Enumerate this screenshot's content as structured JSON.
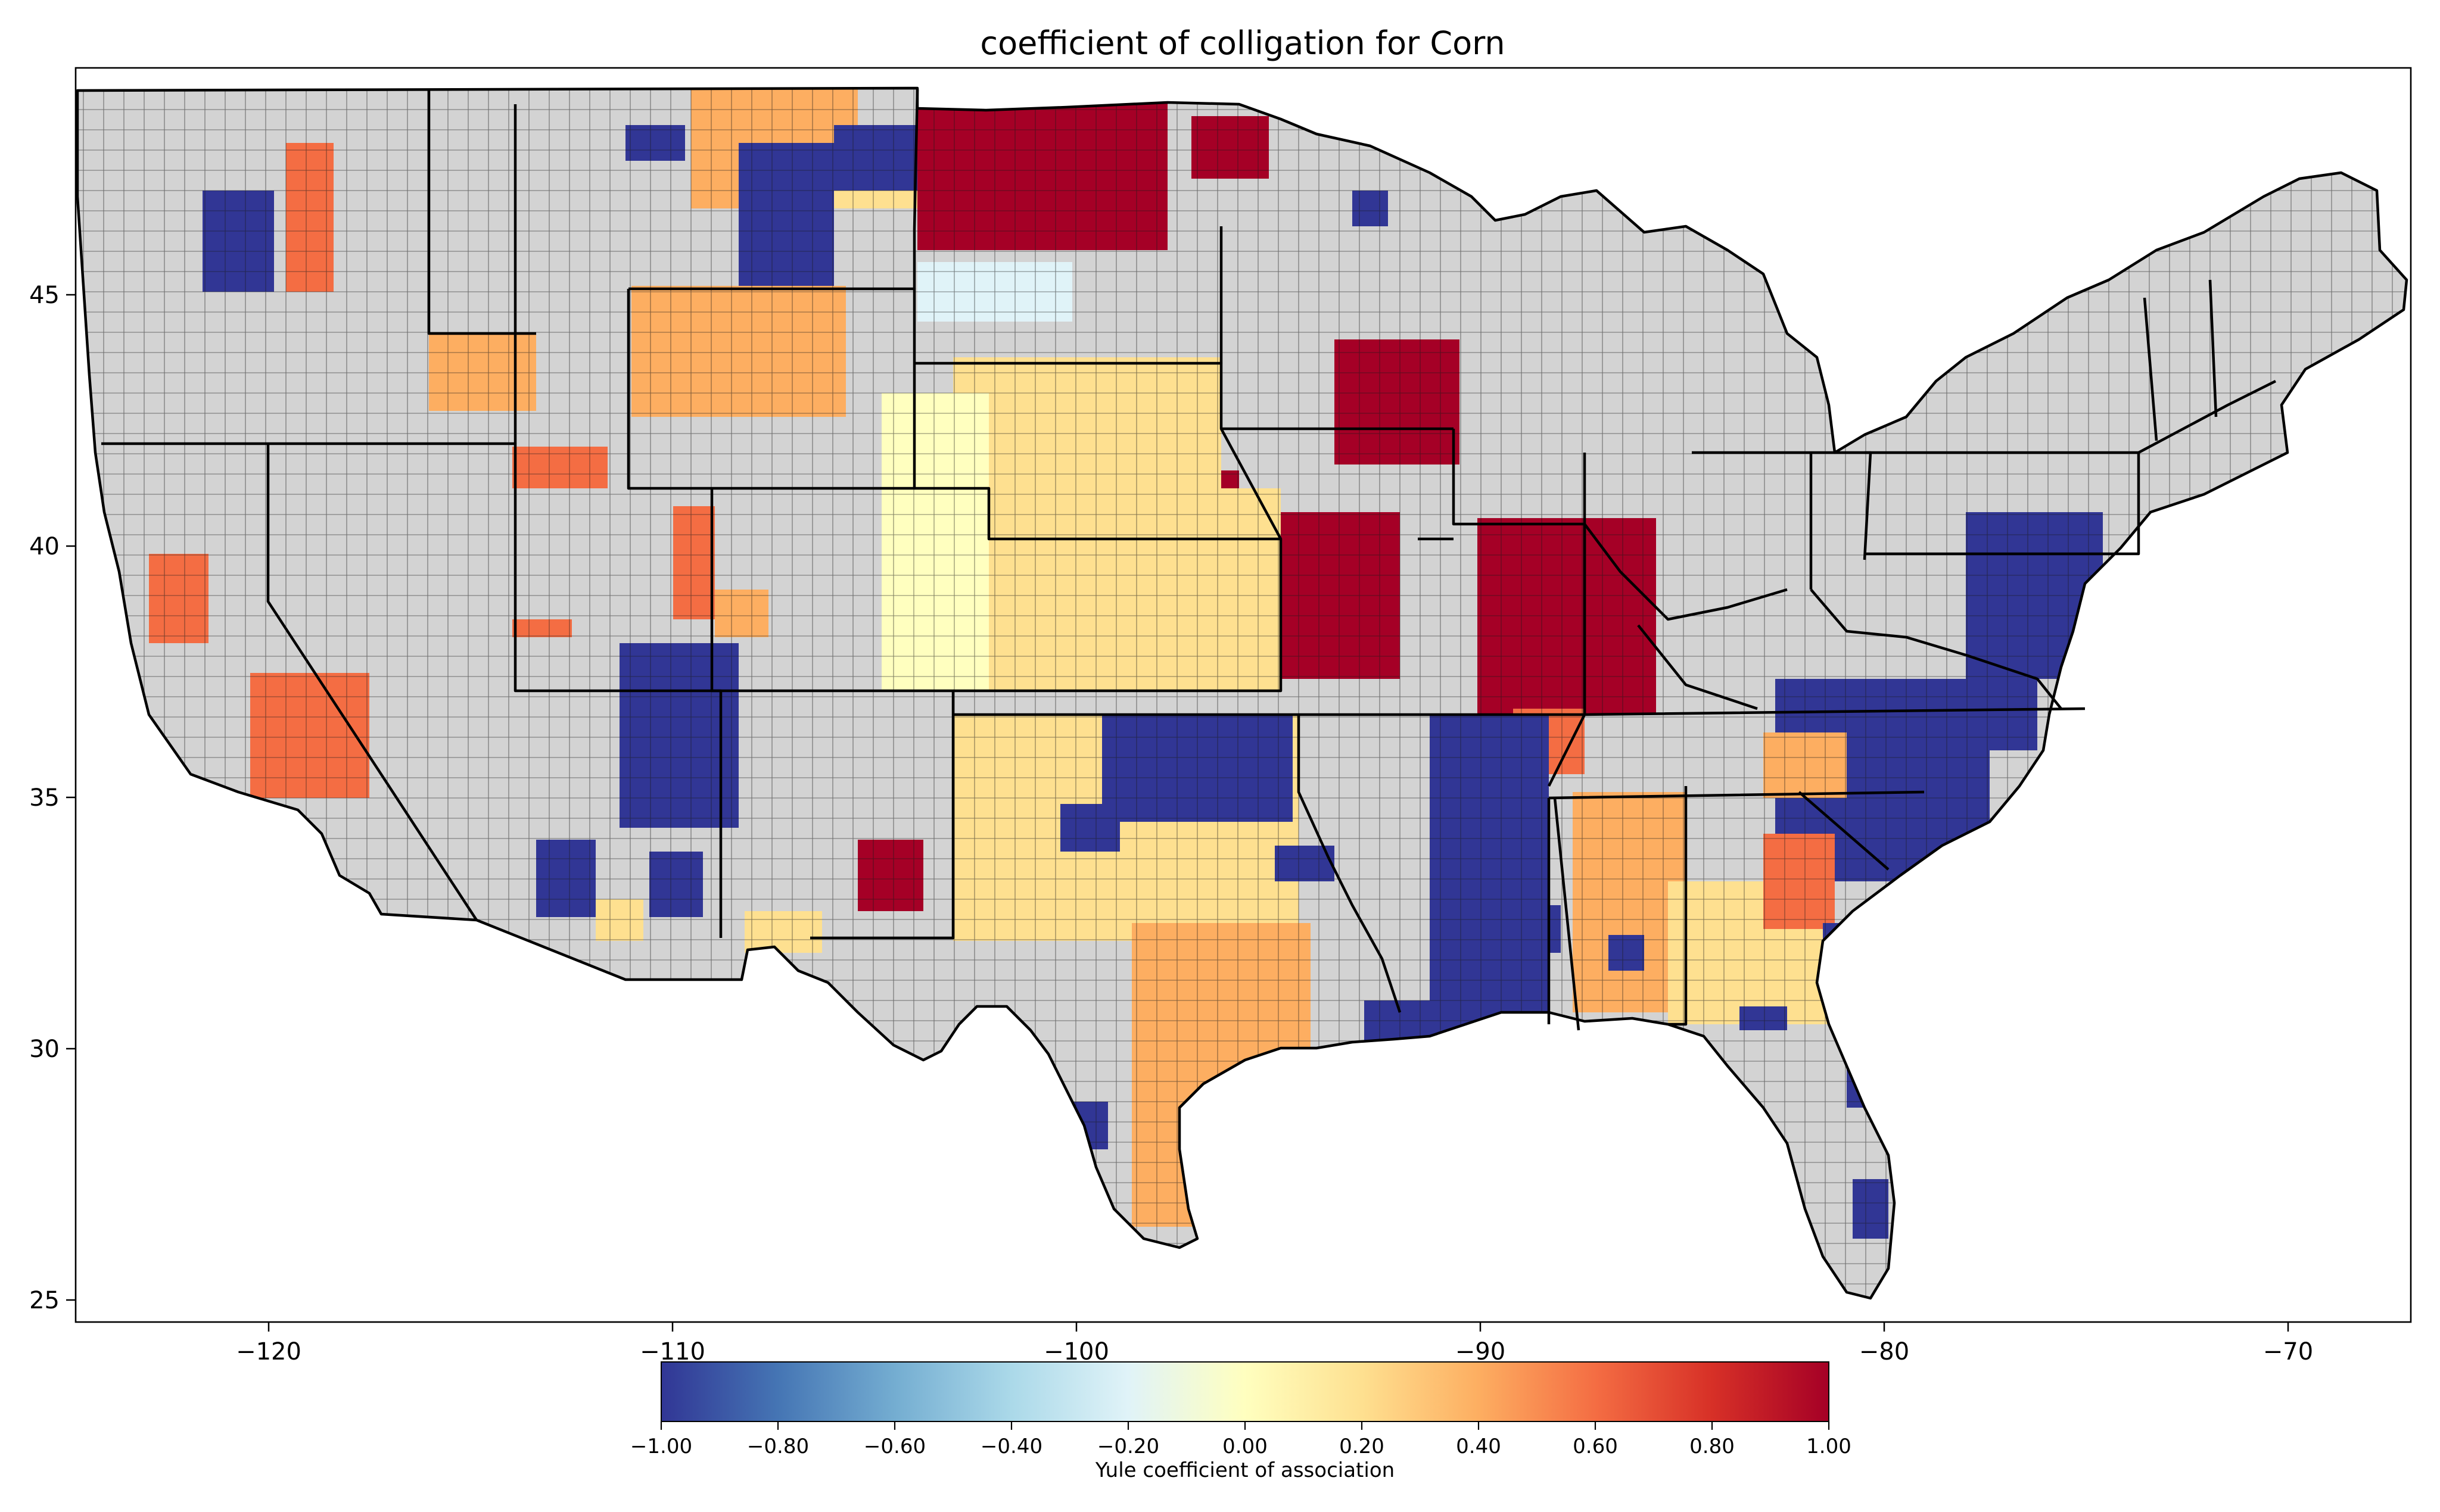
{
  "title": "coefficient of colligation for Corn",
  "x_ticks": [
    "−120",
    "−110",
    "−100",
    "−90",
    "−80",
    "−70"
  ],
  "y_ticks": [
    "25",
    "30",
    "35",
    "40",
    "45"
  ],
  "colorbar": {
    "label": "Yule coefficient of association",
    "ticks": [
      "−1.00",
      "−0.80",
      "−0.60",
      "−0.40",
      "−0.20",
      "0.00",
      "0.20",
      "0.40",
      "0.60",
      "0.80",
      "1.00"
    ],
    "colors": [
      "#313695",
      "#4575b4",
      "#74add1",
      "#abd9e9",
      "#e0f3f8",
      "#ffffbf",
      "#fee090",
      "#fdae61",
      "#f46d43",
      "#d73027",
      "#a50026"
    ],
    "no_data_color": "#d3d3d3"
  }
}
